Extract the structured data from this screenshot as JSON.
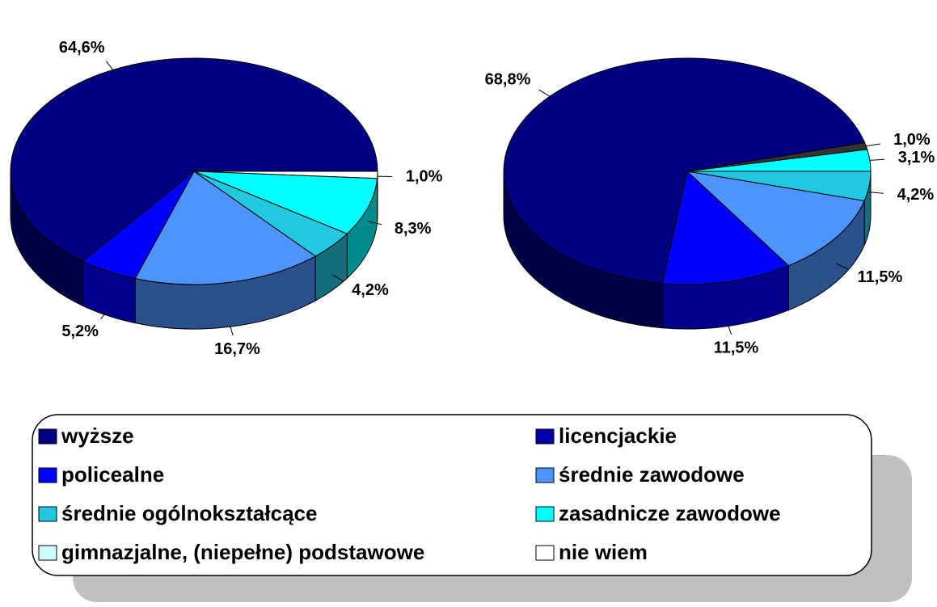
{
  "chart_data": [
    {
      "type": "pie",
      "values": [
        1.0,
        8.3,
        4.2,
        16.7,
        5.2,
        64.6
      ],
      "value_labels": [
        "1,0%",
        "8,3%",
        "4,2%",
        "16,7%",
        "5,2%",
        "64,6%"
      ],
      "colors": [
        "#ffffff",
        "#00ffff",
        "#20c8e0",
        "#4d94ff",
        "#0000ff",
        "#000080"
      ]
    },
    {
      "type": "pie",
      "values": [
        4.2,
        11.5,
        11.5,
        68.8,
        1.0,
        3.1
      ],
      "value_labels": [
        "4,2%",
        "11,5%",
        "11,5%",
        "68,8%",
        "1,0%",
        "3,1%"
      ],
      "colors": [
        "#20c8e0",
        "#4d94ff",
        "#0000ff",
        "#000080",
        "#333333",
        "#00ffff"
      ]
    }
  ],
  "legend": [
    {
      "name": "wyższe",
      "color": "#000080"
    },
    {
      "name": "licencjackie",
      "color": "#0000a8"
    },
    {
      "name": "policealne",
      "color": "#0000ff"
    },
    {
      "name": "średnie zawodowe",
      "color": "#4d94ff"
    },
    {
      "name": "średnie ogólnokształcące",
      "color": "#20c8e0"
    },
    {
      "name": "zasadnicze zawodowe",
      "color": "#00ffff"
    },
    {
      "name": "gimnazjalne, (niepełne) podstawowe",
      "color": "#ccffff"
    },
    {
      "name": "nie wiem",
      "color": "#ffffff"
    }
  ]
}
